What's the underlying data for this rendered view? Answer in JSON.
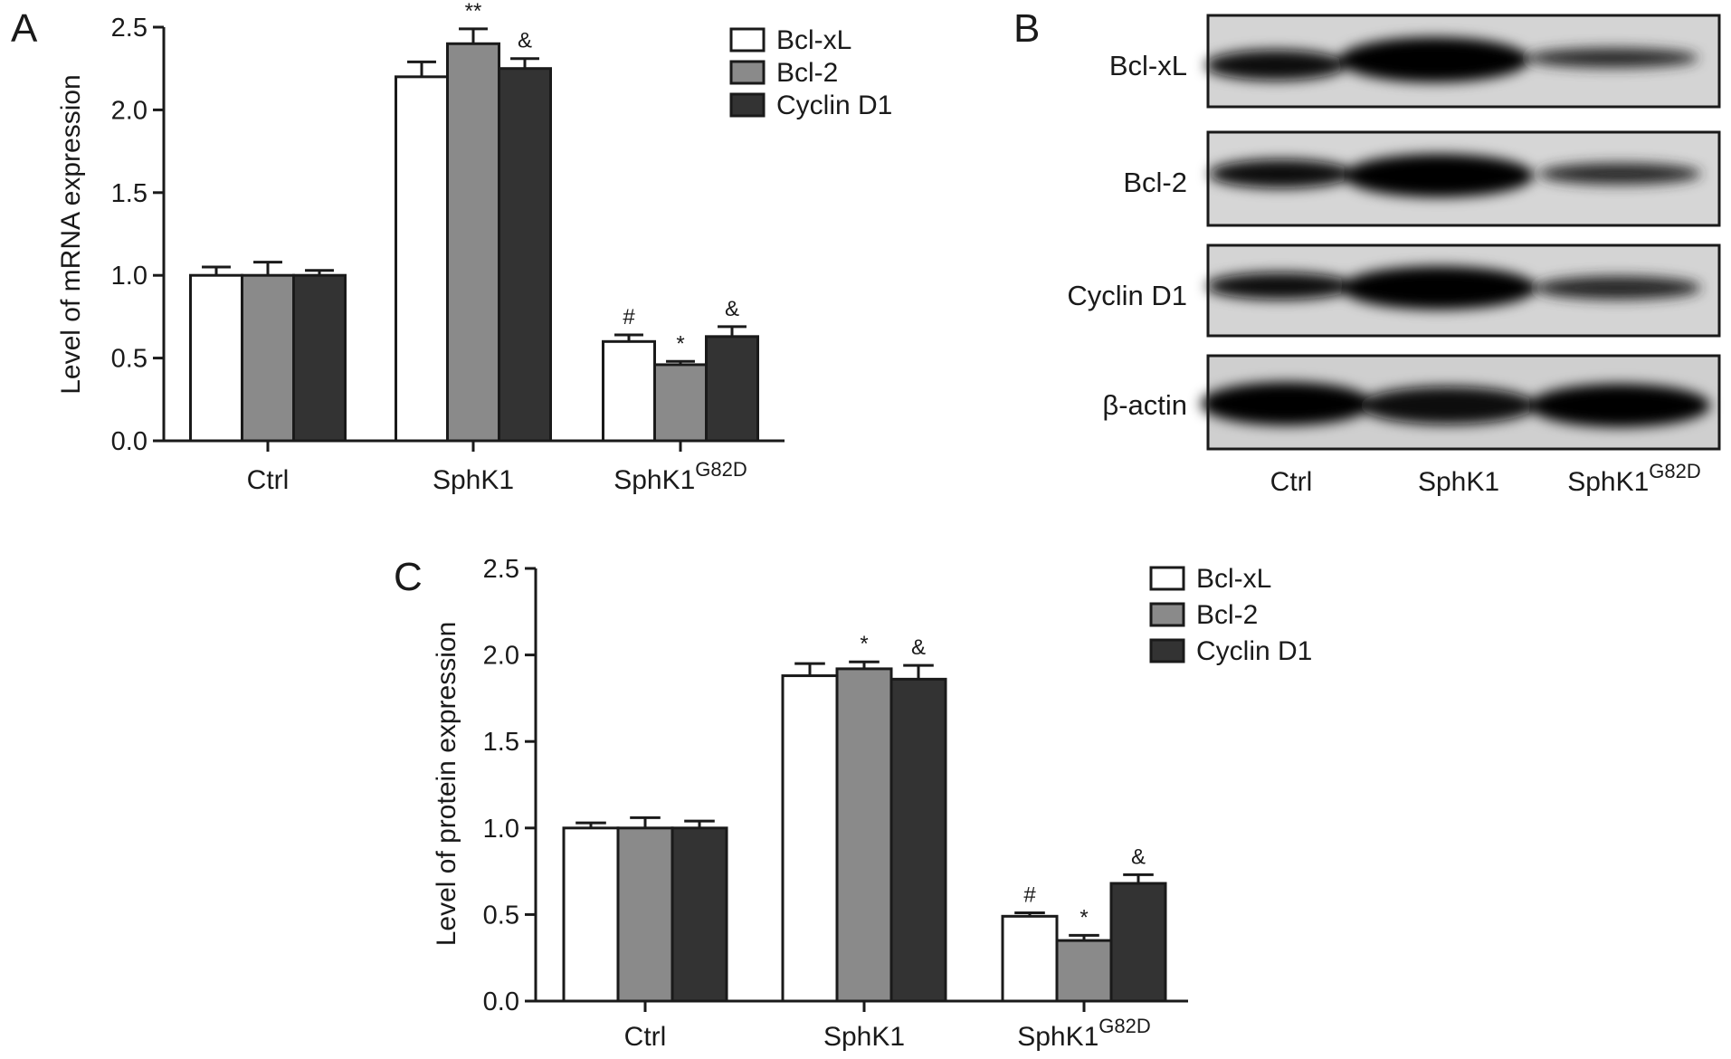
{
  "panels": {
    "a": "A",
    "b": "B",
    "c": "C"
  },
  "colors": {
    "Bcl-xL": "#ffffff",
    "Bcl-2": "#8a8a8a",
    "Cyclin D1": "#333333"
  },
  "chart_data": [
    {
      "id": "A",
      "type": "bar",
      "title": "",
      "xlabel": "",
      "ylabel": "Level of mRNA expression",
      "categories": [
        {
          "base": "Ctrl",
          "sup": ""
        },
        {
          "base": "SphK1",
          "sup": ""
        },
        {
          "base": "SphK1",
          "sup": "G82D"
        }
      ],
      "ylim": [
        0,
        2.5
      ],
      "yticks": [
        "0.0",
        "0.5",
        "1.0",
        "1.5",
        "2.0",
        "2.5"
      ],
      "legend": "top-right",
      "series": [
        {
          "name": "Bcl-xL",
          "values": [
            1.0,
            2.2,
            0.6
          ],
          "errors": [
            0.05,
            0.09,
            0.04
          ],
          "marks": [
            "",
            "",
            "#"
          ]
        },
        {
          "name": "Bcl-2",
          "values": [
            1.0,
            2.4,
            0.46
          ],
          "errors": [
            0.08,
            0.09,
            0.02
          ],
          "marks": [
            "",
            "**",
            "*"
          ]
        },
        {
          "name": "Cyclin D1",
          "values": [
            1.0,
            2.25,
            0.63
          ],
          "errors": [
            0.03,
            0.06,
            0.06
          ],
          "marks": [
            "",
            "&",
            "&"
          ]
        }
      ]
    },
    {
      "id": "C",
      "type": "bar",
      "title": "",
      "xlabel": "",
      "ylabel": "Level of protein expression",
      "categories": [
        {
          "base": "Ctrl",
          "sup": ""
        },
        {
          "base": "SphK1",
          "sup": ""
        },
        {
          "base": "SphK1",
          "sup": "G82D"
        }
      ],
      "ylim": [
        0,
        2.5
      ],
      "yticks": [
        "0.0",
        "0.5",
        "1.0",
        "1.5",
        "2.0",
        "2.5"
      ],
      "legend": "top-right",
      "series": [
        {
          "name": "Bcl-xL",
          "values": [
            1.0,
            1.88,
            0.49
          ],
          "errors": [
            0.03,
            0.07,
            0.02
          ],
          "marks": [
            "",
            "",
            "#"
          ]
        },
        {
          "name": "Bcl-2",
          "values": [
            1.0,
            1.92,
            0.35
          ],
          "errors": [
            0.06,
            0.04,
            0.03
          ],
          "marks": [
            "",
            "*",
            "*"
          ]
        },
        {
          "name": "Cyclin D1",
          "values": [
            1.0,
            1.86,
            0.68
          ],
          "errors": [
            0.04,
            0.08,
            0.05
          ],
          "marks": [
            "",
            "&",
            "&"
          ]
        }
      ]
    }
  ],
  "western_blot": {
    "rows": [
      "Bcl-xL",
      "Bcl-2",
      "Cyclin D1",
      "β-actin"
    ],
    "lanes": [
      {
        "base": "Ctrl",
        "sup": ""
      },
      {
        "base": "SphK1",
        "sup": ""
      },
      {
        "base": "SphK1",
        "sup": "G82D"
      }
    ]
  }
}
